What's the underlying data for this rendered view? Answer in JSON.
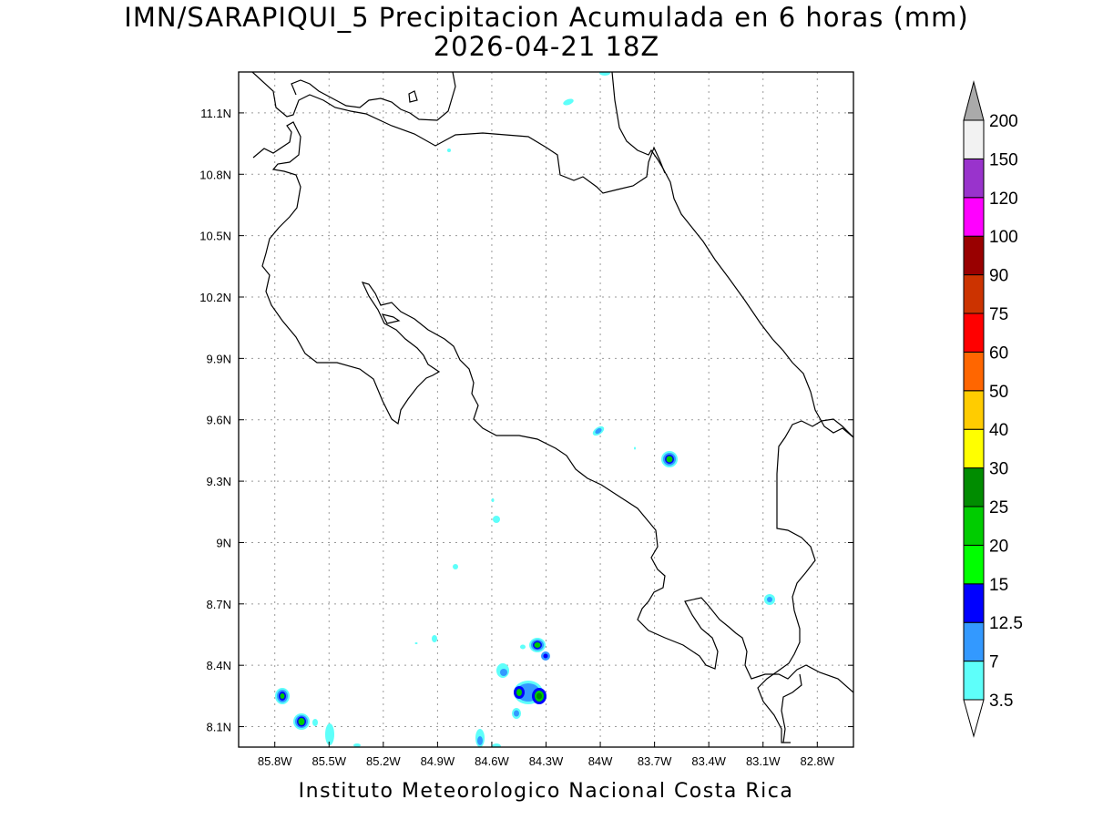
{
  "title": {
    "line1": "IMN/SARAPIQUI_5 Precipitacion Acumulada en 6 horas (mm)",
    "line2": "2026-04-21 18Z"
  },
  "footer": "Instituto Meteorologico Nacional Costa Rica",
  "map": {
    "lon_range": [
      -86.0,
      -82.6
    ],
    "lat_range": [
      8.0,
      11.3
    ],
    "lat_ticks": [
      "11.1N",
      "10.8N",
      "10.5N",
      "10.2N",
      "9.9N",
      "9.6N",
      "9.3N",
      "9N",
      "8.7N",
      "8.4N",
      "8.1N"
    ],
    "lon_ticks": [
      "85.8W",
      "85.5W",
      "85.2W",
      "84.9W",
      "84.6W",
      "84.3W",
      "84W",
      "83.7W",
      "83.4W",
      "83.1W",
      "82.8W"
    ],
    "grid": true
  },
  "colorbar": {
    "levels": [
      "3.5",
      "7",
      "12.5",
      "15",
      "20",
      "25",
      "30",
      "40",
      "50",
      "60",
      "75",
      "90",
      "100",
      "120",
      "150",
      "200"
    ],
    "colors": [
      "#ffffff",
      "#5efffa",
      "#3399ff",
      "#0000ff",
      "#00ff00",
      "#00cc00",
      "#008c00",
      "#ffff00",
      "#ffcc00",
      "#ff6600",
      "#ff0000",
      "#cc3300",
      "#990000",
      "#ff00ff",
      "#9933cc",
      "#f2f2f2",
      "#aaaaaa"
    ]
  }
}
